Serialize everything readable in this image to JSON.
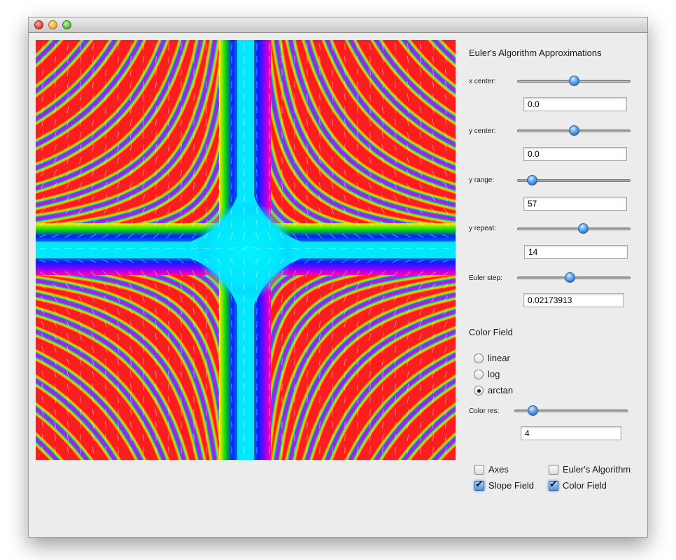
{
  "window": {
    "buttons": [
      "close",
      "minimize",
      "zoom"
    ]
  },
  "plot": {
    "color_field_mode": "arctan",
    "slope_field_visible": true,
    "color_field_visible": true
  },
  "panel": {
    "title": "Euler's Algorithm Approximations",
    "sliders": [
      {
        "label": "x center:",
        "value": "0.0",
        "fraction": 0.5
      },
      {
        "label": "y center:",
        "value": "0.0",
        "fraction": 0.5
      },
      {
        "label": "y range:",
        "value": "57",
        "fraction": 0.13
      },
      {
        "label": "y repeat:",
        "value": "14",
        "fraction": 0.58
      },
      {
        "label": "Euler step:",
        "value": "0.02173913",
        "fraction": 0.46
      }
    ],
    "color_field": {
      "title": "Color Field",
      "options": [
        {
          "label": "linear",
          "selected": false
        },
        {
          "label": "log",
          "selected": false
        },
        {
          "label": "arctan",
          "selected": true
        }
      ],
      "res_label": "Color res:",
      "res_value": "4",
      "res_fraction": 0.16
    },
    "checkboxes": [
      {
        "label": "Axes",
        "checked": false
      },
      {
        "label": "Euler's Algorithm",
        "checked": false
      },
      {
        "label": "Slope Field",
        "checked": true
      },
      {
        "label": "Color Field",
        "checked": true
      }
    ]
  }
}
